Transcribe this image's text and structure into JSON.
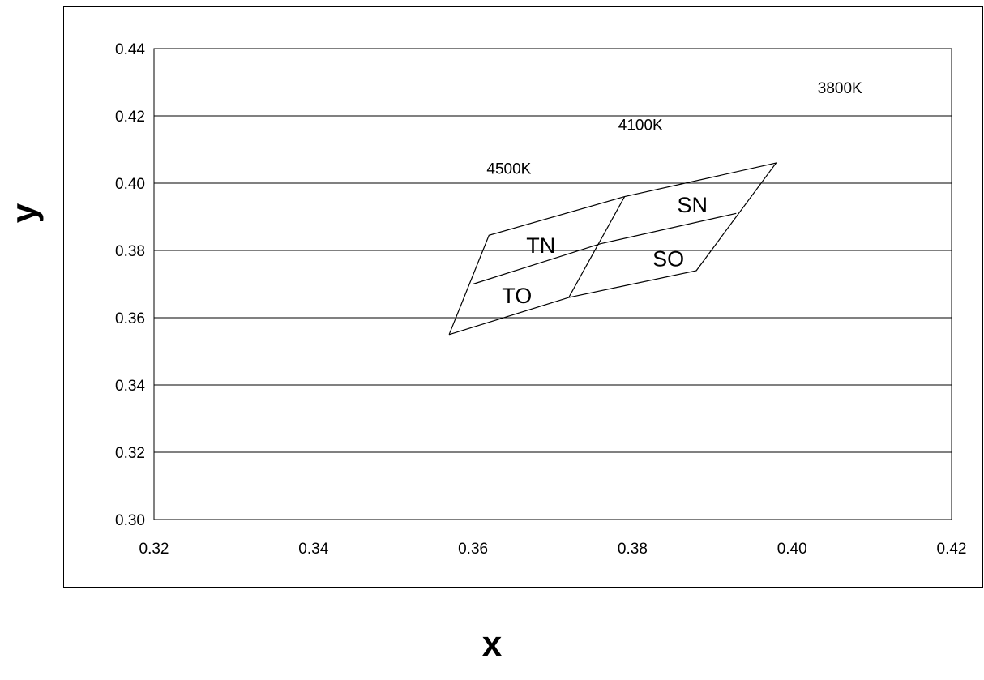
{
  "chart_data": {
    "type": "line",
    "title": "",
    "xlabel": "x",
    "ylabel": "y",
    "xlim": [
      0.32,
      0.42
    ],
    "ylim": [
      0.3,
      0.44
    ],
    "grid": "horizontal",
    "x_ticks": [
      "0.32",
      "0.34",
      "0.36",
      "0.38",
      "0.40",
      "0.42"
    ],
    "y_ticks": [
      "0.30",
      "0.32",
      "0.34",
      "0.36",
      "0.38",
      "0.40",
      "0.42",
      "0.44"
    ],
    "outline": {
      "x": [
        0.357,
        0.362,
        0.379,
        0.398,
        0.388,
        0.372,
        0.357
      ],
      "y": [
        0.355,
        0.3845,
        0.396,
        0.406,
        0.374,
        0.366,
        0.355
      ]
    },
    "dividers": [
      {
        "x": [
          0.36,
          0.376,
          0.393
        ],
        "y": [
          0.37,
          0.382,
          0.391
        ]
      },
      {
        "x": [
          0.379,
          0.372
        ],
        "y": [
          0.396,
          0.366
        ]
      }
    ],
    "region_labels": [
      {
        "text": "SN",
        "x": 0.3875,
        "y": 0.393
      },
      {
        "text": "TN",
        "x": 0.3685,
        "y": 0.381
      },
      {
        "text": "SO",
        "x": 0.3845,
        "y": 0.377
      },
      {
        "text": "TO",
        "x": 0.3655,
        "y": 0.366
      }
    ],
    "cct_labels": [
      {
        "text": "3800K",
        "x": 0.406,
        "y": 0.428
      },
      {
        "text": "4100K",
        "x": 0.381,
        "y": 0.417
      },
      {
        "text": "4500K",
        "x": 0.3645,
        "y": 0.404
      }
    ],
    "colors": {
      "line": "#000000",
      "grid": "#000000",
      "background": "#ffffff"
    }
  }
}
